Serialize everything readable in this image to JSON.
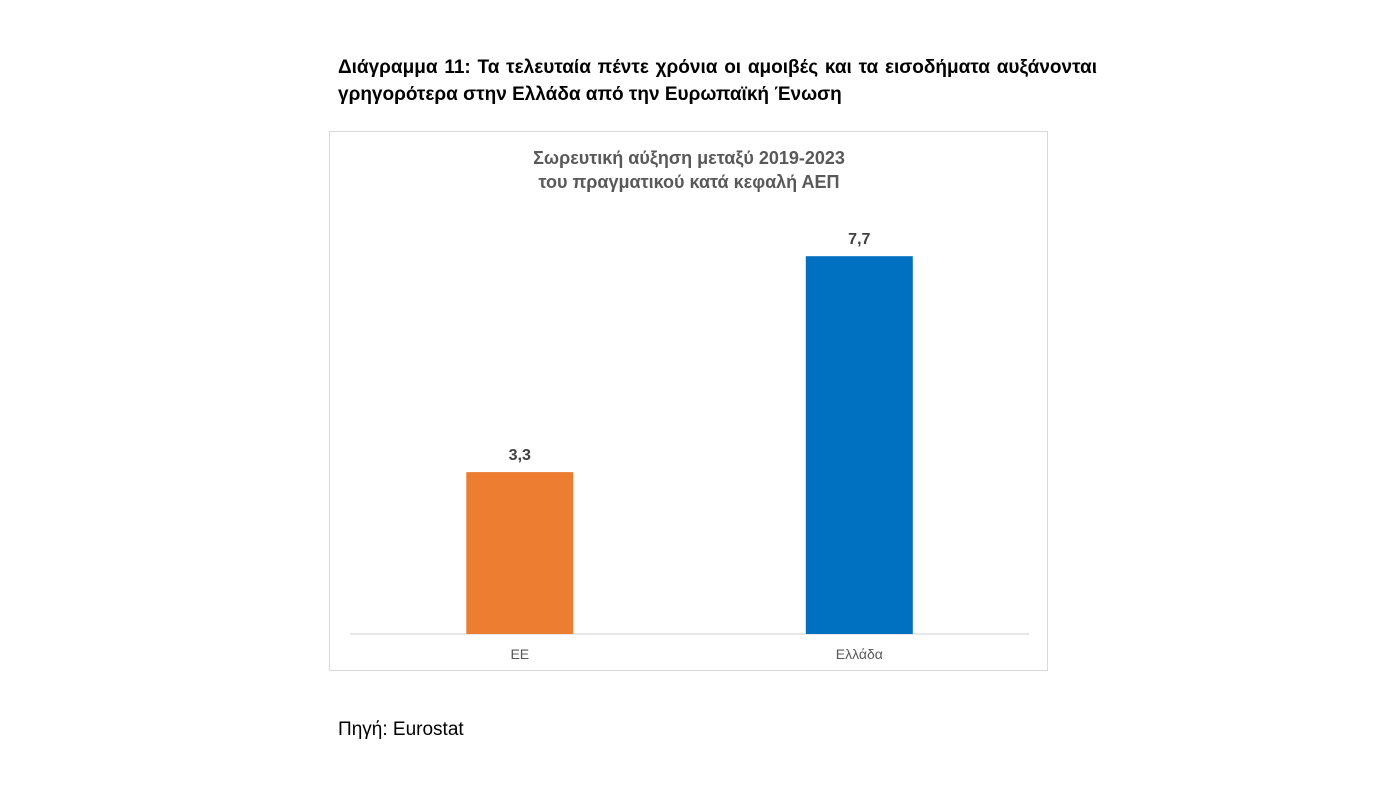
{
  "caption": "Διάγραμμα 11: Τα τελευταία πέντε χρόνια οι αμοιβές και τα εισοδήματα αυξάνονται γρηγορότερα στην Ελλάδα από την Ευρωπαϊκή Ένωση",
  "source": "Πηγή: Eurostat",
  "chart_data": {
    "type": "bar",
    "title_lines": [
      "Σωρευτική αύξηση μεταξύ 2019-2023",
      "του πραγματικού κατά κεφαλή ΑΕΠ"
    ],
    "categories": [
      "ΕΕ",
      "Ελλάδα"
    ],
    "values": [
      3.3,
      7.7
    ],
    "value_labels": [
      "3,3",
      "7,7"
    ],
    "bar_colors": [
      "#ED7D31",
      "#0070C0"
    ],
    "ylim": [
      0,
      8.6
    ],
    "grid": false,
    "legend": false,
    "xlabel": "",
    "ylabel": ""
  }
}
